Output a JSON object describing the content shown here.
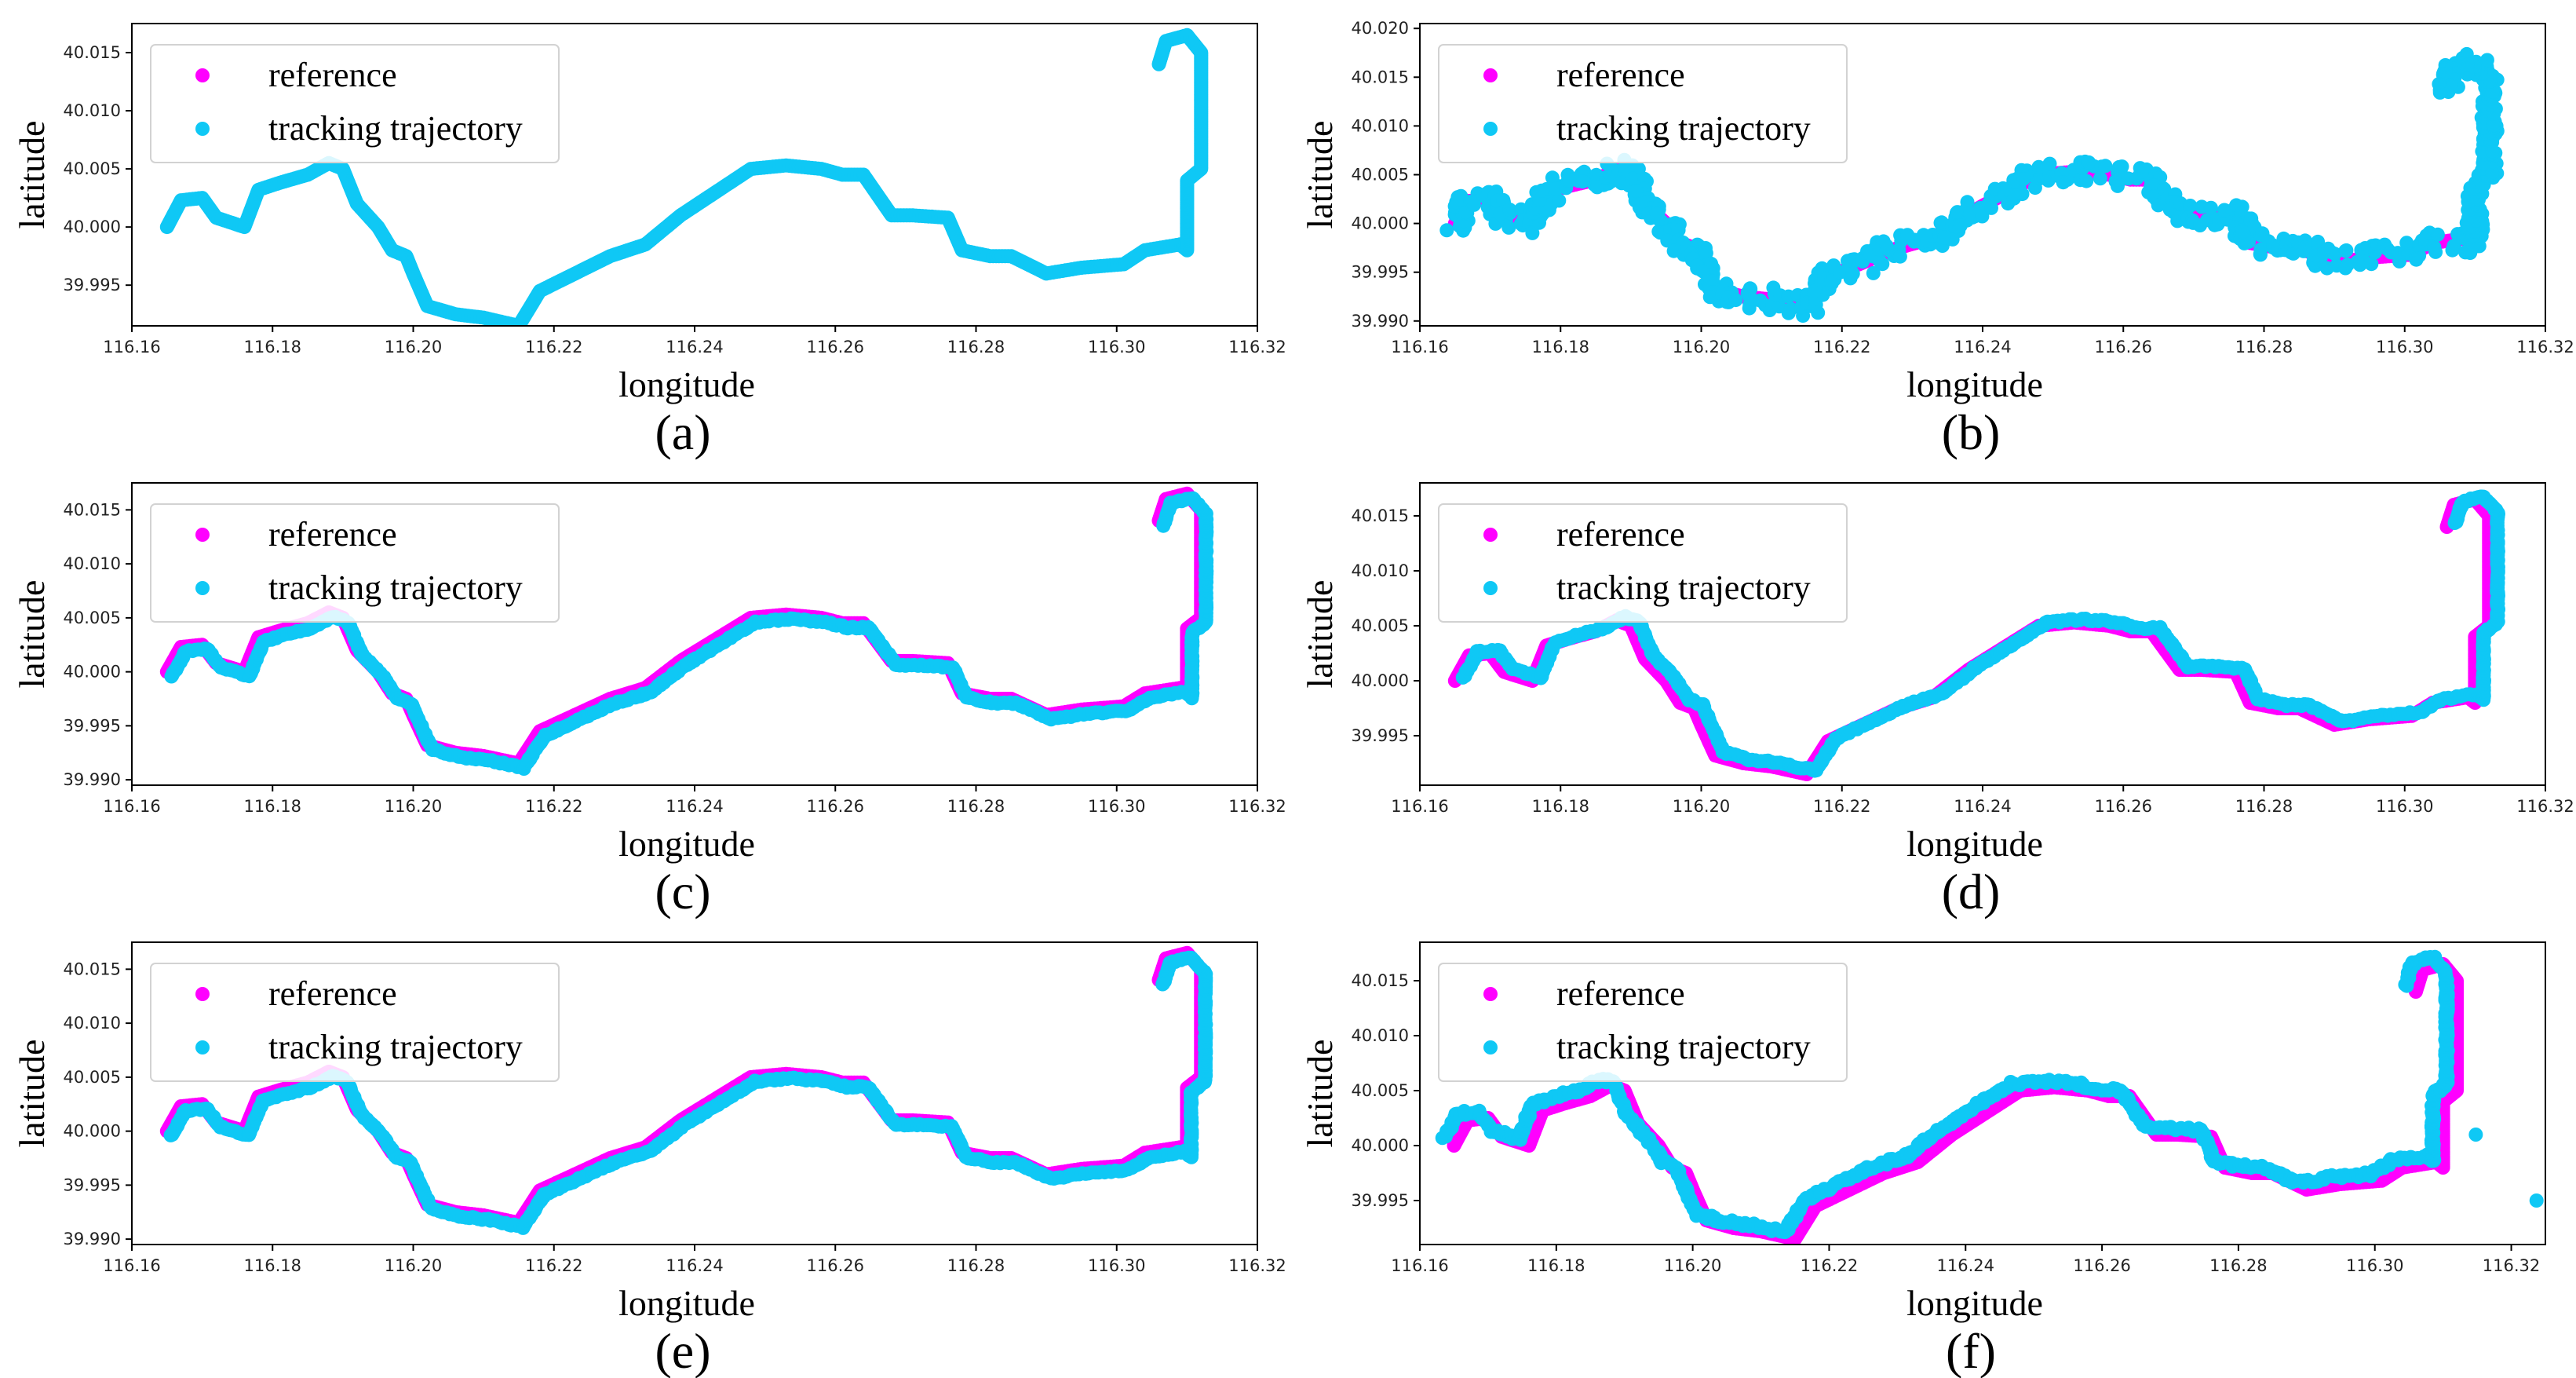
{
  "figure": {
    "colors": {
      "reference": "#ff00ff",
      "tracking": "#0fc8f5"
    }
  },
  "chart_data": [
    {
      "type": "scatter",
      "panel_label": "(a)",
      "xlabel": "longitude",
      "ylabel": "latitude",
      "xlim": [
        116.16,
        116.32
      ],
      "ylim": [
        39.9915,
        40.0175
      ],
      "xticks": [
        "116.16",
        "116.18",
        "116.20",
        "116.22",
        "116.24",
        "116.26",
        "116.28",
        "116.30",
        "116.32"
      ],
      "yticks": [
        "39.995",
        "40.000",
        "40.005",
        "40.010",
        "40.015"
      ],
      "legend": [
        "reference",
        "tracking trajectory"
      ],
      "legend_position": "upper-left",
      "variant": "a"
    },
    {
      "type": "scatter",
      "panel_label": "(b)",
      "xlabel": "longitude",
      "ylabel": "latitude",
      "xlim": [
        116.16,
        116.32
      ],
      "ylim": [
        39.9895,
        40.0205
      ],
      "xticks": [
        "116.16",
        "116.18",
        "116.20",
        "116.22",
        "116.24",
        "116.26",
        "116.28",
        "116.30",
        "116.32"
      ],
      "yticks": [
        "39.990",
        "39.995",
        "40.000",
        "40.005",
        "40.010",
        "40.015",
        "40.020"
      ],
      "legend": [
        "reference",
        "tracking trajectory"
      ],
      "legend_position": "upper-left",
      "variant": "b"
    },
    {
      "type": "scatter",
      "panel_label": "(c)",
      "xlabel": "longitude",
      "ylabel": "latitude",
      "xlim": [
        116.16,
        116.32
      ],
      "ylim": [
        39.9895,
        40.0175
      ],
      "xticks": [
        "116.16",
        "116.18",
        "116.20",
        "116.22",
        "116.24",
        "116.26",
        "116.28",
        "116.30",
        "116.32"
      ],
      "yticks": [
        "39.990",
        "39.995",
        "40.000",
        "40.005",
        "40.010",
        "40.015"
      ],
      "legend": [
        "reference",
        "tracking trajectory"
      ],
      "legend_position": "upper-left",
      "variant": "c"
    },
    {
      "type": "scatter",
      "panel_label": "(d)",
      "xlabel": "longitude",
      "ylabel": "latitude",
      "xlim": [
        116.16,
        116.32
      ],
      "ylim": [
        39.9905,
        40.018
      ],
      "xticks": [
        "116.16",
        "116.18",
        "116.20",
        "116.22",
        "116.24",
        "116.26",
        "116.28",
        "116.30",
        "116.32"
      ],
      "yticks": [
        "39.995",
        "40.000",
        "40.005",
        "40.010",
        "40.015"
      ],
      "legend": [
        "reference",
        "tracking trajectory"
      ],
      "legend_position": "upper-left",
      "variant": "d"
    },
    {
      "type": "scatter",
      "panel_label": "(e)",
      "xlabel": "longitude",
      "ylabel": "latitude",
      "xlim": [
        116.16,
        116.32
      ],
      "ylim": [
        39.9895,
        40.0175
      ],
      "xticks": [
        "116.16",
        "116.18",
        "116.20",
        "116.22",
        "116.24",
        "116.26",
        "116.28",
        "116.30",
        "116.32"
      ],
      "yticks": [
        "39.990",
        "39.995",
        "40.000",
        "40.005",
        "40.010",
        "40.015"
      ],
      "legend": [
        "reference",
        "tracking trajectory"
      ],
      "legend_position": "upper-left",
      "variant": "e"
    },
    {
      "type": "scatter",
      "panel_label": "(f)",
      "xlabel": "longitude",
      "ylabel": "latitude",
      "xlim": [
        116.16,
        116.325
      ],
      "ylim": [
        39.991,
        40.0185
      ],
      "xticks": [
        "116.16",
        "116.18",
        "116.20",
        "116.22",
        "116.24",
        "116.26",
        "116.28",
        "116.30",
        "116.32"
      ],
      "yticks": [
        "39.995",
        "40.000",
        "40.005",
        "40.010",
        "40.015"
      ],
      "legend": [
        "reference",
        "tracking trajectory"
      ],
      "legend_position": "upper-left",
      "variant": "f",
      "outliers": [
        [
          116.3148,
          40.001
        ],
        [
          116.3237,
          39.995
        ]
      ]
    }
  ],
  "reference_path": [
    [
      116.165,
      40.0
    ],
    [
      116.167,
      40.0023
    ],
    [
      116.17,
      40.0025
    ],
    [
      116.172,
      40.0008
    ],
    [
      116.176,
      40.0
    ],
    [
      116.178,
      40.0032
    ],
    [
      116.181,
      40.0038
    ],
    [
      116.185,
      40.0045
    ],
    [
      116.188,
      40.0055
    ],
    [
      116.19,
      40.005
    ],
    [
      116.192,
      40.002
    ],
    [
      116.195,
      40.0
    ],
    [
      116.197,
      39.998
    ],
    [
      116.199,
      39.9975
    ],
    [
      116.2,
      39.996
    ],
    [
      116.202,
      39.9932
    ],
    [
      116.206,
      39.9925
    ],
    [
      116.21,
      39.9922
    ],
    [
      116.215,
      39.9915
    ],
    [
      116.218,
      39.9945
    ],
    [
      116.223,
      39.996
    ],
    [
      116.228,
      39.9975
    ],
    [
      116.233,
      39.9985
    ],
    [
      116.238,
      40.001
    ],
    [
      116.243,
      40.003
    ],
    [
      116.248,
      40.005
    ],
    [
      116.253,
      40.0053
    ],
    [
      116.258,
      40.005
    ],
    [
      116.261,
      40.0045
    ],
    [
      116.264,
      40.0045
    ],
    [
      116.268,
      40.001
    ],
    [
      116.271,
      40.001
    ],
    [
      116.276,
      40.0008
    ],
    [
      116.278,
      39.998
    ],
    [
      116.282,
      39.9975
    ],
    [
      116.285,
      39.9975
    ],
    [
      116.29,
      39.996
    ],
    [
      116.295,
      39.9965
    ],
    [
      116.301,
      39.9968
    ],
    [
      116.304,
      39.998
    ],
    [
      116.309,
      39.9985
    ],
    [
      116.31,
      39.998
    ],
    [
      116.31,
      40.004
    ],
    [
      116.312,
      40.005
    ],
    [
      116.312,
      40.015
    ],
    [
      116.31,
      40.0165
    ],
    [
      116.307,
      40.016
    ],
    [
      116.306,
      40.014
    ]
  ]
}
